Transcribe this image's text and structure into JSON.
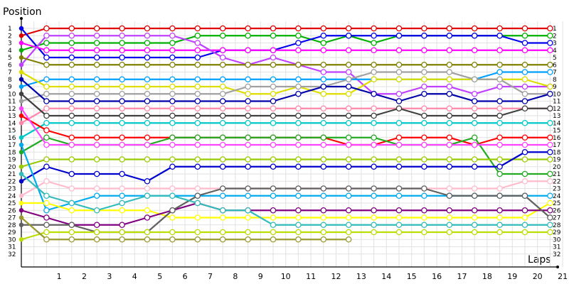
{
  "chart_data": {
    "type": "line",
    "ylabel": "Position",
    "xlabel": "Laps",
    "x_ticks": [
      "1",
      "2",
      "3",
      "4",
      "5",
      "6",
      "7",
      "8",
      "9",
      "10",
      "11",
      "12",
      "13",
      "14",
      "15",
      "16",
      "17",
      "18",
      "19",
      "20",
      "21"
    ],
    "y_ticks": [
      "1",
      "2",
      "3",
      "4",
      "5",
      "6",
      "7",
      "8",
      "9",
      "10",
      "11",
      "12",
      "13",
      "14",
      "15",
      "16",
      "17",
      "18",
      "19",
      "20",
      "21",
      "22",
      "23",
      "24",
      "25",
      "26",
      "27",
      "28",
      "29",
      "30",
      "31",
      "32"
    ],
    "x_range": [
      0,
      21.5
    ],
    "y_range": [
      1,
      32
    ],
    "grid": true,
    "legend": "none",
    "series": [
      {
        "color": "#e00000",
        "values": [
          2,
          1,
          1,
          1,
          1,
          1,
          1,
          1,
          1,
          1,
          1,
          1,
          1,
          1,
          1,
          1,
          1,
          1,
          1,
          1,
          1,
          1
        ]
      },
      {
        "color": "#00b000",
        "values": [
          4,
          3,
          3,
          3,
          3,
          3,
          3,
          2,
          2,
          2,
          2,
          2,
          3,
          2,
          3,
          2,
          2,
          2,
          2,
          2,
          2,
          2
        ]
      },
      {
        "color": "#0000ee",
        "values": [
          1,
          5,
          5,
          5,
          5,
          5,
          5,
          5,
          4,
          4,
          4,
          3,
          2,
          2,
          2,
          2,
          2,
          2,
          2,
          2,
          3,
          3
        ]
      },
      {
        "color": "#ff00ff",
        "values": [
          3,
          4,
          4,
          4,
          4,
          4,
          4,
          4,
          4,
          4,
          4,
          4,
          4,
          4,
          4,
          4,
          4,
          4,
          4,
          4,
          4,
          4
        ]
      },
      {
        "color": "#c040ff",
        "values": [
          6,
          2,
          2,
          2,
          2,
          2,
          2,
          3,
          5,
          6,
          5,
          6,
          7,
          7,
          10,
          10,
          9,
          9,
          10,
          9,
          9,
          9
        ]
      },
      {
        "color": "#808000",
        "values": [
          5,
          6,
          6,
          6,
          6,
          6,
          6,
          6,
          6,
          6,
          6,
          6,
          6,
          6,
          6,
          6,
          6,
          6,
          6,
          6,
          6,
          6
        ]
      },
      {
        "color": "#00a0ff",
        "values": [
          9,
          8,
          8,
          8,
          8,
          8,
          8,
          8,
          8,
          8,
          8,
          8,
          8,
          8,
          8,
          8,
          8,
          8,
          8,
          7,
          7,
          7
        ]
      },
      {
        "color": "#dddd00",
        "values": [
          7,
          9,
          9,
          9,
          9,
          9,
          9,
          9,
          9,
          10,
          10,
          9,
          10,
          10,
          8,
          8,
          8,
          8,
          8,
          8,
          8,
          9
        ]
      },
      {
        "color": "#a0a0a0",
        "values": [
          11,
          10,
          10,
          10,
          10,
          10,
          10,
          10,
          10,
          9,
          9,
          9,
          9,
          8,
          7,
          7,
          7,
          7,
          8,
          8,
          10,
          10
        ]
      },
      {
        "color": "#0000aa",
        "values": [
          8,
          11,
          11,
          11,
          11,
          11,
          11,
          11,
          11,
          11,
          11,
          10,
          9,
          9,
          10,
          11,
          10,
          10,
          11,
          11,
          11,
          10
        ]
      },
      {
        "color": "#ff88aa",
        "values": [
          14,
          12,
          12,
          12,
          12,
          12,
          12,
          12,
          12,
          12,
          12,
          12,
          12,
          12,
          12,
          12,
          12,
          12,
          12,
          12,
          12,
          12
        ]
      },
      {
        "color": "#404040",
        "values": [
          10,
          13,
          13,
          13,
          13,
          13,
          13,
          13,
          13,
          13,
          13,
          13,
          13,
          13,
          13,
          12,
          13,
          13,
          13,
          13,
          12,
          12
        ]
      },
      {
        "color": "#00c8c8",
        "values": [
          16,
          14,
          14,
          14,
          14,
          14,
          14,
          14,
          14,
          14,
          14,
          14,
          14,
          14,
          14,
          14,
          14,
          14,
          14,
          14,
          14,
          14
        ]
      },
      {
        "color": "#ff0000",
        "values": [
          13,
          15,
          16,
          16,
          16,
          16,
          16,
          16,
          16,
          16,
          16,
          16,
          16,
          17,
          17,
          16,
          16,
          16,
          17,
          16,
          16,
          16
        ]
      },
      {
        "color": "#22aa22",
        "values": [
          18,
          16,
          17,
          17,
          17,
          17,
          16,
          16,
          16,
          16,
          16,
          16,
          16,
          16,
          16,
          17,
          17,
          17,
          16,
          21,
          21,
          21
        ]
      },
      {
        "color": "#ff44ff",
        "values": [
          12,
          17,
          17,
          17,
          17,
          17,
          17,
          17,
          17,
          17,
          17,
          17,
          17,
          17,
          17,
          17,
          17,
          17,
          17,
          17,
          17,
          17
        ]
      },
      {
        "color": "#99cc00",
        "values": [
          20,
          19,
          19,
          19,
          19,
          19,
          19,
          19,
          19,
          19,
          19,
          19,
          19,
          19,
          19,
          19,
          19,
          19,
          19,
          19,
          19,
          19
        ]
      },
      {
        "color": "#0000cc",
        "values": [
          22,
          20,
          21,
          21,
          21,
          22,
          20,
          20,
          20,
          20,
          20,
          20,
          20,
          20,
          20,
          20,
          20,
          20,
          20,
          20,
          18,
          18
        ]
      },
      {
        "color": "#ffbbcc",
        "values": [
          24,
          22,
          23,
          23,
          23,
          23,
          23,
          23,
          23,
          23,
          23,
          23,
          23,
          23,
          23,
          23,
          23,
          23,
          23,
          23,
          22,
          22
        ]
      },
      {
        "color": "#00aaee",
        "values": [
          17,
          26,
          25,
          24,
          24,
          24,
          24,
          24,
          24,
          24,
          24,
          24,
          24,
          24,
          24,
          24,
          24,
          24,
          24,
          24,
          24,
          24
        ]
      },
      {
        "color": "#ffff00",
        "values": [
          25,
          25,
          26,
          26,
          26,
          26,
          27,
          27,
          27,
          27,
          27,
          27,
          27,
          27,
          27,
          27,
          27,
          27,
          27,
          27,
          27,
          25
        ]
      },
      {
        "color": "#800080",
        "values": [
          26,
          27,
          28,
          28,
          28,
          27,
          26,
          25,
          26,
          26,
          26,
          26,
          26,
          26,
          26,
          26,
          26,
          26,
          26,
          26,
          26,
          26
        ]
      },
      {
        "color": "#606060",
        "values": [
          28,
          28,
          28,
          29,
          29,
          29,
          26,
          24,
          23,
          23,
          23,
          23,
          23,
          23,
          23,
          23,
          23,
          24,
          24,
          24,
          24,
          27
        ]
      },
      {
        "color": "#33bbbb",
        "values": [
          21,
          24,
          25,
          26,
          25,
          24,
          24,
          25,
          26,
          26,
          28,
          28,
          28,
          28,
          28,
          28,
          28,
          28,
          28,
          28,
          28,
          28
        ]
      },
      {
        "color": "#bbdd00",
        "values": [
          30,
          29,
          29,
          29,
          29,
          29,
          29,
          29,
          29,
          29,
          29,
          29,
          29,
          29,
          29,
          29,
          29,
          29,
          29,
          29,
          29,
          29
        ]
      },
      {
        "color": "#9a9a30",
        "values": [
          27,
          30,
          30,
          30,
          30,
          30,
          30,
          30,
          30,
          30,
          30,
          30,
          30,
          30
        ]
      }
    ]
  }
}
